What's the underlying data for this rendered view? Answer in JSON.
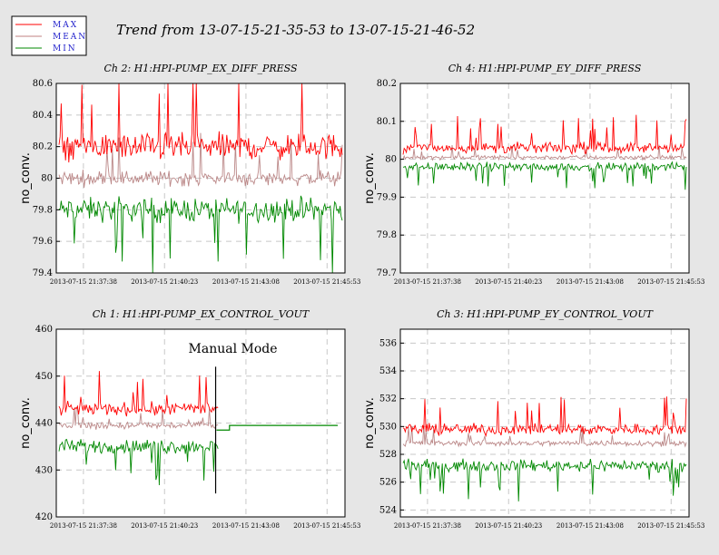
{
  "title": "Trend from 13-07-15-21-35-53 to 13-07-15-21-46-52",
  "legend": [
    {
      "label": "MAX",
      "color": "#ff0000"
    },
    {
      "label": "MEAN",
      "color": "#c08080"
    },
    {
      "label": "MIN",
      "color": "#008800"
    }
  ],
  "colors": {
    "max": "#ff0000",
    "mean": "#bb8888",
    "min": "#008800",
    "grid": "#c8c8c8",
    "plot_bg": "#ffffff"
  },
  "chart_data": [
    {
      "type": "line",
      "title": "Ch 2: H1:HPI-PUMP_EX_DIFF_PRESS",
      "ylabel": "no_conv.",
      "ylim": [
        79.4,
        80.6
      ],
      "yticks": [
        "79.4",
        "79.6",
        "79.8",
        "80",
        "80.2",
        "80.4",
        "80.6"
      ],
      "xticks": [
        "2013-07-15 21:37:38",
        "2013-07-15 21:40:23",
        "2013-07-15 21:43:08",
        "2013-07-15 21:45:53"
      ],
      "grid": true,
      "series": [
        {
          "name": "MAX",
          "approx_level": 80.2,
          "noise": 0.12
        },
        {
          "name": "MEAN",
          "approx_level": 80.0,
          "noise": 0.07
        },
        {
          "name": "MIN",
          "approx_level": 79.8,
          "noise": 0.11
        }
      ]
    },
    {
      "type": "line",
      "title": "Ch 4: H1:HPI-PUMP_EY_DIFF_PRESS",
      "ylabel": "no_conv.",
      "ylim": [
        79.7,
        80.2
      ],
      "yticks": [
        "79.7",
        "79.8",
        "79.9",
        "80",
        "80.1",
        "80.2"
      ],
      "xticks": [
        "2013-07-15 21:37:38",
        "2013-07-15 21:40:23",
        "2013-07-15 21:43:08",
        "2013-07-15 21:45:53"
      ],
      "grid": true,
      "series": [
        {
          "name": "MAX",
          "approx_level": 80.03,
          "noise": 0.02
        },
        {
          "name": "MEAN",
          "approx_level": 80.005,
          "noise": 0.008
        },
        {
          "name": "MIN",
          "approx_level": 79.98,
          "noise": 0.015
        }
      ]
    },
    {
      "type": "line",
      "title": "Ch 1: H1:HPI-PUMP_EX_CONTROL_VOUT",
      "ylabel": "no_conv.",
      "ylim": [
        420,
        460
      ],
      "yticks": [
        "420",
        "430",
        "440",
        "450",
        "460"
      ],
      "xticks": [
        "2013-07-15 21:37:38",
        "2013-07-15 21:40:23",
        "2013-07-15 21:43:08",
        "2013-07-15 21:45:53"
      ],
      "grid": true,
      "annotation": "Manual Mode",
      "series": [
        {
          "name": "MAX",
          "approx_level": 443,
          "noise": 2.0
        },
        {
          "name": "MEAN",
          "approx_level": 439.5,
          "noise": 1.2
        },
        {
          "name": "MIN",
          "approx_level": 435,
          "noise": 2.2
        }
      ],
      "manual_mode_levels": [
        438.5,
        439.5
      ]
    },
    {
      "type": "line",
      "title": "Ch 3: H1:HPI-PUMP_EY_CONTROL_VOUT",
      "ylabel": "no_conv.",
      "ylim": [
        523.5,
        537
      ],
      "yticks": [
        "524",
        "526",
        "528",
        "530",
        "532",
        "534",
        "536"
      ],
      "xticks": [
        "2013-07-15 21:37:38",
        "2013-07-15 21:40:23",
        "2013-07-15 21:43:08",
        "2013-07-15 21:45:53"
      ],
      "grid": true,
      "series": [
        {
          "name": "MAX",
          "approx_level": 529.8,
          "noise": 0.6
        },
        {
          "name": "MEAN",
          "approx_level": 528.8,
          "noise": 0.3
        },
        {
          "name": "MIN",
          "approx_level": 527.2,
          "noise": 0.6
        }
      ]
    }
  ]
}
